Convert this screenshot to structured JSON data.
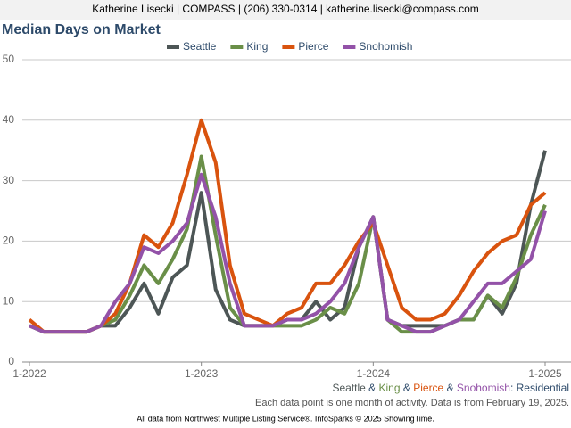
{
  "header": "Katherine Lisecki | COMPASS | (206) 330-0314 | katherine.lisecki@compass.com",
  "chart_data": {
    "type": "line",
    "title": "Median Days on Market",
    "categories": [
      "1-2022",
      null,
      null,
      null,
      null,
      null,
      null,
      null,
      null,
      null,
      null,
      null,
      "1-2023",
      null,
      null,
      null,
      null,
      null,
      null,
      null,
      null,
      null,
      null,
      null,
      "1-2024",
      null,
      null,
      null,
      null,
      null,
      null,
      null,
      null,
      null,
      null,
      null,
      "1-2025"
    ],
    "series": [
      {
        "name": "Seattle",
        "color": "#4d5656",
        "values": [
          6,
          5,
          5,
          5,
          5,
          6,
          6,
          9,
          13,
          8,
          14,
          16,
          28,
          12,
          7,
          6,
          6,
          6,
          7,
          7,
          10,
          7,
          9,
          19,
          24,
          7,
          6,
          6,
          6,
          6,
          7,
          7,
          11,
          8,
          13,
          26,
          35
        ]
      },
      {
        "name": "King",
        "color": "#6a8f48",
        "values": [
          6,
          5,
          5,
          5,
          5,
          6,
          7,
          11,
          16,
          13,
          17,
          22,
          34,
          21,
          9,
          6,
          6,
          6,
          6,
          6,
          7,
          9,
          8,
          13,
          24,
          7,
          5,
          5,
          5,
          6,
          7,
          7,
          11,
          9,
          14,
          21,
          26
        ]
      },
      {
        "name": "Pierce",
        "color": "#d9530e",
        "values": [
          7,
          5,
          5,
          5,
          5,
          6,
          8,
          13,
          21,
          19,
          23,
          31,
          40,
          33,
          16,
          8,
          7,
          6,
          8,
          9,
          13,
          13,
          16,
          20,
          23,
          16,
          9,
          7,
          7,
          8,
          11,
          15,
          18,
          20,
          21,
          26,
          28
        ]
      },
      {
        "name": "Snohomish",
        "color": "#9352a8",
        "values": [
          6,
          5,
          5,
          5,
          5,
          6,
          10,
          13,
          19,
          18,
          20,
          23,
          31,
          24,
          13,
          6,
          6,
          6,
          7,
          7,
          8,
          10,
          13,
          19,
          24,
          7,
          6,
          5,
          5,
          6,
          7,
          10,
          13,
          13,
          15,
          17,
          25
        ]
      }
    ],
    "ylim": [
      0,
      50
    ],
    "yticks": [
      0,
      10,
      20,
      30,
      40,
      50
    ],
    "grid": true,
    "legend": "top",
    "series_note": {
      "separator": " & ",
      "suffix": ": Residential"
    },
    "note": "Each data point is one month of activity. Data is from February 19, 2025.",
    "source": "All data from Northwest Multiple Listing Service®. InfoSparks © 2025 ShowingTime."
  }
}
